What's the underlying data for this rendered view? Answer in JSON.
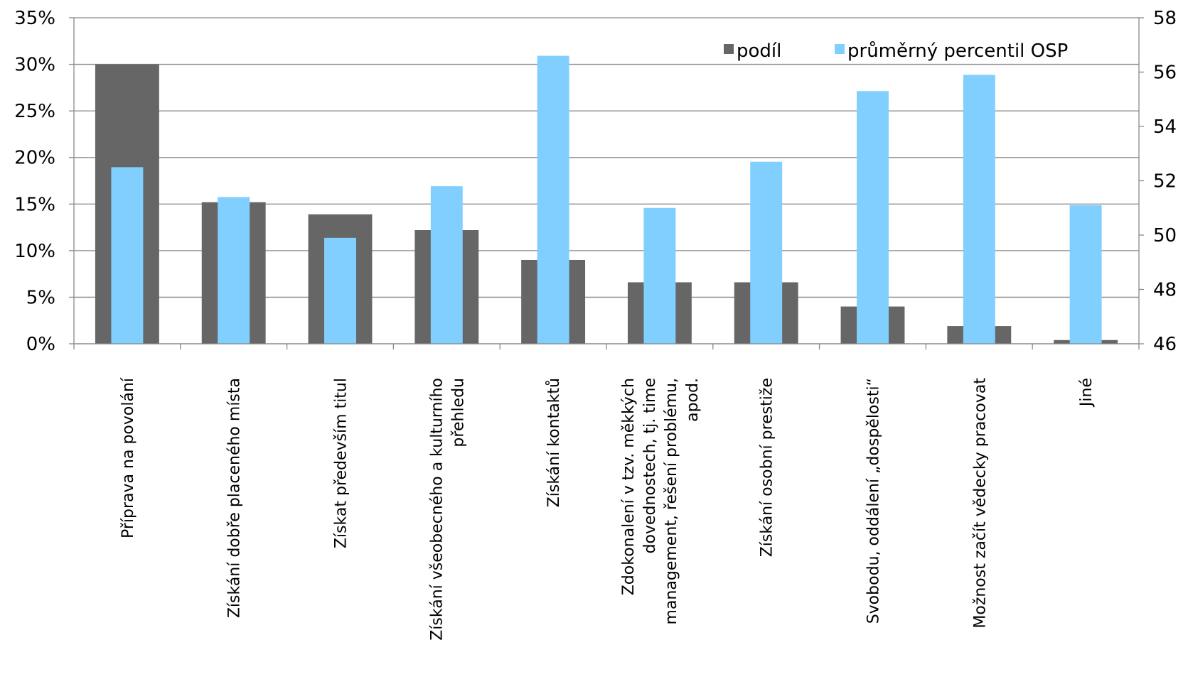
{
  "chart_data": {
    "type": "bar",
    "categories": [
      [
        "Příprava na povolání"
      ],
      [
        "Získání dobře placeného místa"
      ],
      [
        "Získat především titul"
      ],
      [
        "Získání všeobecného a kulturního",
        "přehledu"
      ],
      [
        "Získání kontaktů"
      ],
      [
        "Zdokonalení v tzv.   měkkých",
        "dovednostech, tj. time",
        "management, řešení problému,",
        "apod."
      ],
      [
        "Získání osobní prestiže"
      ],
      [
        "Svobodu, oddálení „dospělosti“"
      ],
      [
        "Možnost začít vědecky pracovat"
      ],
      [
        "Jiné"
      ]
    ],
    "series": [
      {
        "name": "podíl",
        "axis": "left",
        "color": "#666666",
        "values": [
          0.3,
          0.152,
          0.139,
          0.122,
          0.09,
          0.066,
          0.066,
          0.04,
          0.019,
          0.004
        ]
      },
      {
        "name": "průměrný percentil OSP",
        "axis": "right",
        "color": "#80cfff",
        "values": [
          52.5,
          51.4,
          49.9,
          51.8,
          56.6,
          51.0,
          52.7,
          55.3,
          55.9,
          51.1
        ]
      }
    ],
    "y_left": {
      "min": 0,
      "max": 0.35,
      "ticks": [
        "0%",
        "5%",
        "10%",
        "15%",
        "20%",
        "25%",
        "30%",
        "35%"
      ]
    },
    "y_right": {
      "min": 46,
      "max": 58,
      "ticks": [
        "46",
        "48",
        "50",
        "52",
        "54",
        "56",
        "58"
      ]
    },
    "grid": true,
    "legend_position": "top-right"
  }
}
